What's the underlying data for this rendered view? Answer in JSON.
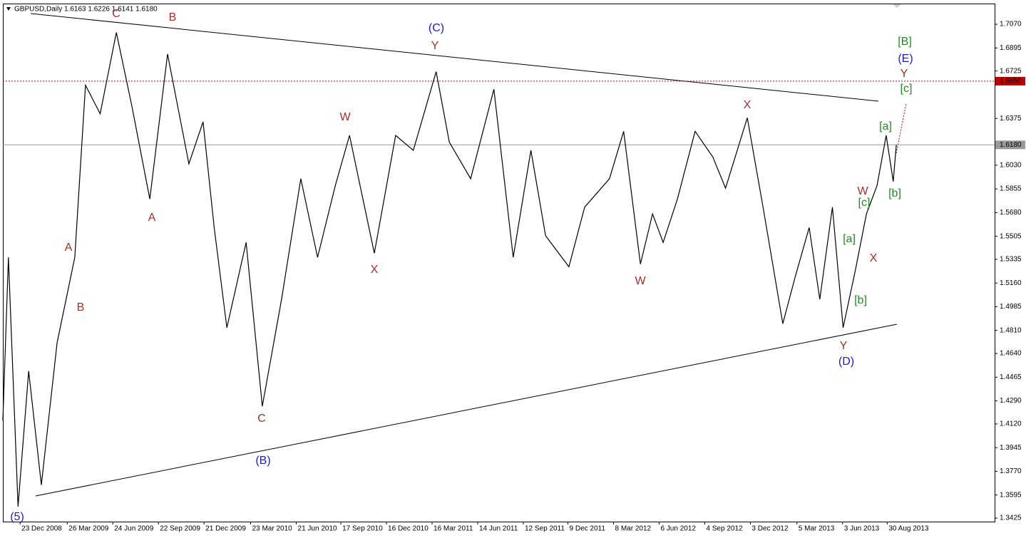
{
  "chart_data": {
    "type": "line",
    "title": "GBPUSD,Daily  1.6163 1.6226 1.6141 1.6180",
    "color": "#000000",
    "x": [
      "2008-11-19",
      "2008-11-30",
      "2008-12-19",
      "2009-01-09",
      "2009-02-03",
      "2009-03-06",
      "2009-04-10",
      "2009-05-01",
      "2009-05-30",
      "2009-07-01",
      "2009-08-01",
      "2009-09-05",
      "2009-10-10",
      "2009-11-21",
      "2009-12-19",
      "2010-01-10",
      "2010-02-04",
      "2010-03-14",
      "2010-04-15",
      "2010-05-23",
      "2010-06-30",
      "2010-08-02",
      "2010-09-06",
      "2010-10-04",
      "2010-11-22",
      "2011-01-03",
      "2011-02-07",
      "2011-03-24",
      "2011-04-19",
      "2011-05-31",
      "2011-07-16",
      "2011-08-23",
      "2011-09-27",
      "2011-10-26",
      "2011-12-11",
      "2012-01-11",
      "2012-02-29",
      "2012-03-28",
      "2012-04-30",
      "2012-05-24",
      "2012-06-14",
      "2012-07-12",
      "2012-08-16",
      "2012-09-20",
      "2012-10-15",
      "2012-11-27",
      "2012-12-28",
      "2013-02-05",
      "2013-03-01",
      "2013-03-29",
      "2013-04-19",
      "2013-05-14",
      "2013-06-04",
      "2013-06-28",
      "2013-07-20",
      "2013-08-10",
      "2013-08-28",
      "2013-09-11",
      "2013-09-17"
    ],
    "values": [
      1.4145,
      1.535,
      1.351,
      1.451,
      1.367,
      1.472,
      1.535,
      1.662,
      1.641,
      1.701,
      1.646,
      1.578,
      1.685,
      1.604,
      1.635,
      1.557,
      1.483,
      1.546,
      1.425,
      1.504,
      1.593,
      1.535,
      1.588,
      1.625,
      1.538,
      1.625,
      1.614,
      1.672,
      1.62,
      1.593,
      1.659,
      1.535,
      1.614,
      1.551,
      1.528,
      1.572,
      1.593,
      1.628,
      1.53,
      1.567,
      1.546,
      1.578,
      1.628,
      1.609,
      1.586,
      1.638,
      1.572,
      1.486,
      1.52,
      1.557,
      1.504,
      1.572,
      1.483,
      1.525,
      1.567,
      1.588,
      1.625,
      1.591,
      1.618
    ],
    "xlim": [
      "2008-11-19",
      "2014-03-30"
    ],
    "xticks": [
      {
        "value": "2008-12-23",
        "label": "23 Dec 2008"
      },
      {
        "value": "2009-03-26",
        "label": "26 Mar 2009"
      },
      {
        "value": "2009-06-24",
        "label": "24 Jun 2009"
      },
      {
        "value": "2009-09-22",
        "label": "22 Sep 2009"
      },
      {
        "value": "2009-12-21",
        "label": "21 Dec 2009"
      },
      {
        "value": "2010-03-23",
        "label": "23 Mar 2010"
      },
      {
        "value": "2010-06-21",
        "label": "21 Jun 2010"
      },
      {
        "value": "2010-09-17",
        "label": "17 Sep 2010"
      },
      {
        "value": "2010-12-16",
        "label": "16 Dec 2010"
      },
      {
        "value": "2011-03-16",
        "label": "16 Mar 2011"
      },
      {
        "value": "2011-06-14",
        "label": "14 Jun 2011"
      },
      {
        "value": "2011-09-12",
        "label": "12 Sep 2011"
      },
      {
        "value": "2011-12-09",
        "label": "9 Dec 2011"
      },
      {
        "value": "2012-03-08",
        "label": "8 Mar 2012"
      },
      {
        "value": "2012-06-06",
        "label": "6 Jun 2012"
      },
      {
        "value": "2012-09-04",
        "label": "4 Sep 2012"
      },
      {
        "value": "2012-12-03",
        "label": "3 Dec 2012"
      },
      {
        "value": "2013-03-05",
        "label": "5 Mar 2013"
      },
      {
        "value": "2013-06-03",
        "label": "3 Jun 2013"
      },
      {
        "value": "2013-08-30",
        "label": "30 Aug 2013"
      }
    ],
    "ylim": [
      1.3399,
      1.7223
    ],
    "yticks": [
      {
        "value": 1.707,
        "label": "1.7070"
      },
      {
        "value": 1.6895,
        "label": "1.6895"
      },
      {
        "value": 1.6725,
        "label": "1.6725"
      },
      {
        "value": 1.6375,
        "label": "1.6375"
      },
      {
        "value": 1.603,
        "label": "1.6030"
      },
      {
        "value": 1.5855,
        "label": "1.5855"
      },
      {
        "value": 1.568,
        "label": "1.5680"
      },
      {
        "value": 1.5505,
        "label": "1.5505"
      },
      {
        "value": 1.5335,
        "label": "1.5335"
      },
      {
        "value": 1.516,
        "label": "1.5160"
      },
      {
        "value": 1.4985,
        "label": "1.4985"
      },
      {
        "value": 1.481,
        "label": "1.4810"
      },
      {
        "value": 1.464,
        "label": "1.4640"
      },
      {
        "value": 1.4465,
        "label": "1.4465"
      },
      {
        "value": 1.429,
        "label": "1.4290"
      },
      {
        "value": 1.412,
        "label": "1.4120"
      },
      {
        "value": 1.3945,
        "label": "1.3945"
      },
      {
        "value": 1.377,
        "label": "1.3770"
      },
      {
        "value": 1.3595,
        "label": "1.3595"
      },
      {
        "value": 1.3425,
        "label": "1.3425"
      }
    ],
    "levels": [
      {
        "value": 1.665,
        "label": "1.6650",
        "color": "#c00000"
      },
      {
        "value": 1.618,
        "label": "1.6180",
        "color": "#9a9a9a"
      }
    ],
    "annotations": [
      {
        "text": "C",
        "color": "#a0302a"
      },
      {
        "text": "B",
        "color": "#a0302a"
      },
      {
        "text": "A",
        "color": "#a0302a"
      },
      {
        "text": "B",
        "color": "#a0302a"
      },
      {
        "text": "A",
        "color": "#a0302a"
      },
      {
        "text": "C",
        "color": "#a0302a"
      },
      {
        "text": "W",
        "color": "#a0302a"
      },
      {
        "text": "X",
        "color": "#a0302a"
      },
      {
        "text": "Y",
        "color": "#a0302a"
      },
      {
        "text": "X",
        "color": "#a0302a"
      },
      {
        "text": "W",
        "color": "#a0302a"
      },
      {
        "text": "Y",
        "color": "#a0302a"
      },
      {
        "text": "W",
        "color": "#a0302a"
      },
      {
        "text": "X",
        "color": "#a0302a"
      },
      {
        "text": "Y",
        "color": "#a0302a"
      },
      {
        "text": "(5)",
        "color": "#1a1ad0"
      },
      {
        "text": "(B)",
        "color": "#1a1ad0"
      },
      {
        "text": "(C)",
        "color": "#1a1ad0"
      },
      {
        "text": "(D)",
        "color": "#1a1ad0"
      },
      {
        "text": "(E)",
        "color": "#1a1ad0"
      },
      {
        "text": "[B]",
        "color": "#228b22"
      },
      {
        "text": "[c]",
        "color": "#228b22"
      },
      {
        "text": "[a]",
        "color": "#228b22"
      },
      {
        "text": "[b]",
        "color": "#228b22"
      },
      {
        "text": "[c]",
        "color": "#228b22"
      },
      {
        "text": "[a]",
        "color": "#228b22"
      },
      {
        "text": "[b]",
        "color": "#228b22"
      }
    ]
  }
}
